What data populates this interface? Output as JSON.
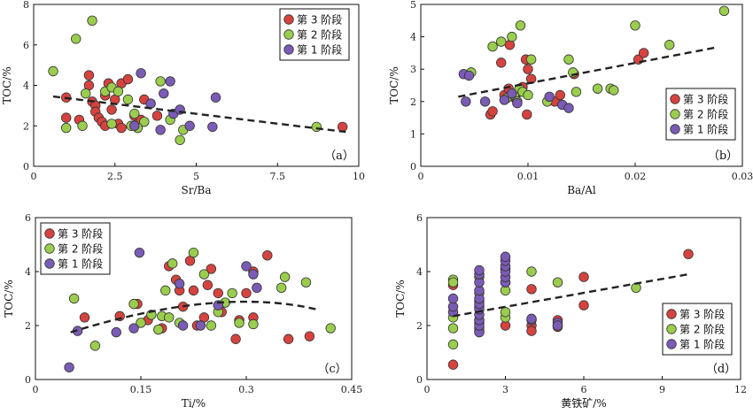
{
  "colors": {
    "stage3": "#d6433f",
    "stage2": "#9acd4d",
    "stage1": "#7a5bb5",
    "trend": "#222222"
  },
  "chart_data": [
    {
      "type": "scatter",
      "panel_label": "（a）",
      "xlabel": "Sr/Ba",
      "ylabel": "TOC/%",
      "xlim": [
        0,
        10
      ],
      "ylim": [
        0,
        8
      ],
      "xticks": [
        0,
        2.5,
        5,
        7.5,
        10
      ],
      "xtick_labels": [
        "0",
        "2.5",
        "5",
        "7.5",
        "10"
      ],
      "yticks": [
        0,
        2,
        4,
        6,
        8
      ],
      "ytick_labels": [
        "0",
        "2",
        "4",
        "6",
        "8"
      ],
      "legend": {
        "position": "top-right",
        "items": [
          "第 3 阶段",
          "第 2 阶段",
          "第 1 阶段"
        ]
      },
      "trend": {
        "type": "linear",
        "from": [
          0.6,
          3.45
        ],
        "to": [
          9.6,
          1.7
        ]
      },
      "series": [
        {
          "name": "第 3 阶段",
          "color": "stage3",
          "points": [
            [
              1.0,
              3.4
            ],
            [
              1.0,
              2.4
            ],
            [
              1.4,
              2.3
            ],
            [
              1.7,
              4.5
            ],
            [
              1.7,
              4.0
            ],
            [
              1.8,
              3.2
            ],
            [
              1.9,
              3.0
            ],
            [
              1.9,
              2.7
            ],
            [
              2.0,
              2.4
            ],
            [
              2.1,
              2.2
            ],
            [
              2.2,
              2.0
            ],
            [
              2.2,
              3.5
            ],
            [
              2.3,
              4.1
            ],
            [
              2.4,
              2.8
            ],
            [
              2.5,
              3.3
            ],
            [
              2.6,
              2.1
            ],
            [
              2.7,
              1.9
            ],
            [
              2.7,
              4.1
            ],
            [
              2.9,
              4.3
            ],
            [
              3.1,
              2.5
            ],
            [
              3.3,
              2.3
            ],
            [
              3.4,
              3.3
            ],
            [
              3.8,
              2.5
            ],
            [
              9.5,
              1.95
            ]
          ]
        },
        {
          "name": "第 2 阶段",
          "color": "stage2",
          "points": [
            [
              0.6,
              4.7
            ],
            [
              1.0,
              1.9
            ],
            [
              1.3,
              6.3
            ],
            [
              1.8,
              7.2
            ],
            [
              1.6,
              3.6
            ],
            [
              1.5,
              2.0
            ],
            [
              2.2,
              3.7
            ],
            [
              2.4,
              3.9
            ],
            [
              2.6,
              3.7
            ],
            [
              2.9,
              3.3
            ],
            [
              3.1,
              2.6
            ],
            [
              3.4,
              2.2
            ],
            [
              3.0,
              2.0
            ],
            [
              3.2,
              1.9
            ],
            [
              3.9,
              4.2
            ],
            [
              4.2,
              2.3
            ],
            [
              4.5,
              1.3
            ],
            [
              4.6,
              1.8
            ],
            [
              8.7,
              1.95
            ],
            [
              2.4,
              2.1
            ]
          ]
        },
        {
          "name": "第 1 阶段",
          "color": "stage1",
          "points": [
            [
              3.3,
              4.6
            ],
            [
              3.6,
              3.1
            ],
            [
              4.0,
              3.6
            ],
            [
              4.2,
              4.2
            ],
            [
              4.3,
              2.6
            ],
            [
              4.5,
              2.8
            ],
            [
              4.8,
              2.0
            ],
            [
              5.5,
              1.95
            ],
            [
              5.6,
              3.4
            ],
            [
              3.9,
              1.8
            ],
            [
              3.1,
              2.0
            ]
          ]
        }
      ]
    },
    {
      "type": "scatter",
      "panel_label": "（b）",
      "xlabel": "Ba/Al",
      "ylabel": "TOC/%",
      "xlim": [
        0,
        0.03
      ],
      "ylim": [
        0,
        5
      ],
      "xticks": [
        0,
        0.01,
        0.02,
        0.03
      ],
      "xtick_labels": [
        "0",
        "0.01",
        "0.02",
        "0.03"
      ],
      "yticks": [
        0,
        1,
        2,
        3,
        4,
        5
      ],
      "ytick_labels": [
        "0",
        "1",
        "2",
        "3",
        "4",
        "5"
      ],
      "legend": {
        "position": "bottom-right",
        "items": [
          "第 3 阶段",
          "第 2 阶段",
          "第 1 阶段"
        ]
      },
      "trend": {
        "type": "linear",
        "from": [
          0.0035,
          2.15
        ],
        "to": [
          0.0277,
          3.68
        ]
      },
      "series": [
        {
          "name": "第 3 阶段",
          "color": "stage3",
          "points": [
            [
              0.0065,
              1.6
            ],
            [
              0.0067,
              1.7
            ],
            [
              0.0075,
              3.2
            ],
            [
              0.0078,
              2.2
            ],
            [
              0.0082,
              2.4
            ],
            [
              0.0083,
              3.75
            ],
            [
              0.0088,
              2.1
            ],
            [
              0.0092,
              2.3
            ],
            [
              0.0095,
              2.45
            ],
            [
              0.0098,
              3.3
            ],
            [
              0.0099,
              1.6
            ],
            [
              0.01,
              3.0
            ],
            [
              0.0103,
              2.7
            ],
            [
              0.0125,
              2.0
            ],
            [
              0.013,
              2.2
            ],
            [
              0.0143,
              2.85
            ],
            [
              0.0203,
              3.3
            ],
            [
              0.0208,
              3.5
            ]
          ]
        },
        {
          "name": "第 2 阶段",
          "color": "stage2",
          "points": [
            [
              0.0047,
              2.9
            ],
            [
              0.0067,
              3.7
            ],
            [
              0.0075,
              3.85
            ],
            [
              0.008,
              2.1
            ],
            [
              0.0085,
              4.0
            ],
            [
              0.0087,
              2.2
            ],
            [
              0.009,
              2.0
            ],
            [
              0.0092,
              2.4
            ],
            [
              0.0095,
              2.3
            ],
            [
              0.01,
              2.2
            ],
            [
              0.0103,
              3.3
            ],
            [
              0.0118,
              2.0
            ],
            [
              0.0138,
              3.3
            ],
            [
              0.0142,
              2.9
            ],
            [
              0.0145,
              2.3
            ],
            [
              0.0165,
              2.4
            ],
            [
              0.0177,
              2.4
            ],
            [
              0.018,
              2.35
            ],
            [
              0.02,
              4.35
            ],
            [
              0.0232,
              3.75
            ],
            [
              0.0283,
              4.8
            ],
            [
              0.0093,
              4.35
            ]
          ]
        },
        {
          "name": "第 1 阶段",
          "color": "stage1",
          "points": [
            [
              0.004,
              2.85
            ],
            [
              0.0045,
              2.8
            ],
            [
              0.0042,
              2.0
            ],
            [
              0.006,
              2.0
            ],
            [
              0.0078,
              2.05
            ],
            [
              0.0085,
              2.25
            ],
            [
              0.009,
              1.95
            ],
            [
              0.012,
              2.15
            ],
            [
              0.0132,
              1.9
            ],
            [
              0.0138,
              1.8
            ]
          ]
        }
      ]
    },
    {
      "type": "scatter",
      "panel_label": "（c）",
      "xlabel": "Ti/%",
      "ylabel": "TOC/%",
      "xlim": [
        0,
        0.45
      ],
      "ylim": [
        0,
        6
      ],
      "xticks": [
        0,
        0.15,
        0.3,
        0.45
      ],
      "xtick_labels": [
        "0",
        "0.15",
        "0.3",
        "0.45"
      ],
      "yticks": [
        0,
        2,
        4,
        6
      ],
      "ytick_labels": [
        "0",
        "2",
        "4",
        "6"
      ],
      "legend": {
        "position": "top-left",
        "items": [
          "第 3 阶段",
          "第 2 阶段",
          "第 1 阶段"
        ]
      },
      "trend": {
        "type": "quadratic",
        "from": [
          0.05,
          1.75
        ],
        "to": [
          0.4,
          2.6
        ]
      },
      "series": [
        {
          "name": "第 3 阶段",
          "color": "stage3",
          "points": [
            [
              0.07,
              2.3
            ],
            [
              0.12,
              2.35
            ],
            [
              0.145,
              2.8
            ],
            [
              0.16,
              2.2
            ],
            [
              0.18,
              1.9
            ],
            [
              0.19,
              4.2
            ],
            [
              0.2,
              3.7
            ],
            [
              0.205,
              3.3
            ],
            [
              0.21,
              2.7
            ],
            [
              0.22,
              4.4
            ],
            [
              0.225,
              3.3
            ],
            [
              0.23,
              2.0
            ],
            [
              0.24,
              2.3
            ],
            [
              0.245,
              3.5
            ],
            [
              0.25,
              4.1
            ],
            [
              0.26,
              3.2
            ],
            [
              0.265,
              2.5
            ],
            [
              0.285,
              1.5
            ],
            [
              0.29,
              2.2
            ],
            [
              0.3,
              3.2
            ],
            [
              0.31,
              4.0
            ],
            [
              0.33,
              4.6
            ],
            [
              0.36,
              1.5
            ],
            [
              0.39,
              1.6
            ],
            [
              0.31,
              2.3
            ]
          ]
        },
        {
          "name": "第 2 阶段",
          "color": "stage2",
          "points": [
            [
              0.055,
              3.0
            ],
            [
              0.085,
              1.25
            ],
            [
              0.14,
              2.8
            ],
            [
              0.15,
              2.1
            ],
            [
              0.165,
              2.4
            ],
            [
              0.175,
              1.85
            ],
            [
              0.18,
              2.35
            ],
            [
              0.185,
              3.3
            ],
            [
              0.19,
              2.3
            ],
            [
              0.195,
              4.3
            ],
            [
              0.205,
              2.1
            ],
            [
              0.225,
              4.7
            ],
            [
              0.24,
              3.9
            ],
            [
              0.25,
              2.0
            ],
            [
              0.26,
              2.5
            ],
            [
              0.27,
              2.85
            ],
            [
              0.28,
              3.2
            ],
            [
              0.29,
              2.1
            ],
            [
              0.31,
              2.05
            ],
            [
              0.35,
              3.4
            ],
            [
              0.355,
              3.8
            ],
            [
              0.385,
              3.6
            ],
            [
              0.42,
              1.9
            ]
          ]
        },
        {
          "name": "第 1 阶段",
          "color": "stage1",
          "points": [
            [
              0.048,
              0.45
            ],
            [
              0.06,
              1.8
            ],
            [
              0.115,
              1.75
            ],
            [
              0.14,
              1.9
            ],
            [
              0.148,
              4.7
            ],
            [
              0.205,
              3.55
            ],
            [
              0.21,
              2.0
            ],
            [
              0.235,
              2.0
            ],
            [
              0.26,
              2.75
            ],
            [
              0.3,
              4.2
            ],
            [
              0.31,
              3.9
            ],
            [
              0.315,
              3.4
            ]
          ]
        }
      ]
    },
    {
      "type": "scatter",
      "panel_label": "（d）",
      "xlabel": "黄铁矿/%",
      "ylabel": "TOC/%",
      "xlim": [
        0,
        12
      ],
      "ylim": [
        0,
        6
      ],
      "xticks": [
        0,
        3,
        6,
        9,
        12
      ],
      "xtick_labels": [
        "0",
        "3",
        "6",
        "9",
        "12"
      ],
      "yticks": [
        0,
        2,
        4,
        6
      ],
      "ytick_labels": [
        "0",
        "2",
        "4",
        "6"
      ],
      "legend": {
        "position": "bottom-right",
        "items": [
          "第 3 阶段",
          "第 2 阶段",
          "第 1 阶段"
        ]
      },
      "trend": {
        "type": "linear",
        "from": [
          1.0,
          2.35
        ],
        "to": [
          10.0,
          3.9
        ]
      },
      "series": [
        {
          "name": "第 3 阶段",
          "color": "stage3",
          "points": [
            [
              1,
              0.55
            ],
            [
              1,
              3.5
            ],
            [
              2,
              1.8
            ],
            [
              2,
              2.1
            ],
            [
              2,
              2.9
            ],
            [
              3,
              2.0
            ],
            [
              3,
              4.1
            ],
            [
              3,
              3.6
            ],
            [
              4,
              2.0
            ],
            [
              4,
              1.8
            ],
            [
              4,
              3.35
            ],
            [
              5,
              1.95
            ],
            [
              5,
              2.2
            ],
            [
              6,
              2.75
            ],
            [
              6,
              3.8
            ],
            [
              10,
              4.65
            ]
          ]
        },
        {
          "name": "第 2 阶段",
          "color": "stage2",
          "points": [
            [
              1,
              1.3
            ],
            [
              1,
              1.9
            ],
            [
              1,
              2.3
            ],
            [
              1,
              3.7
            ],
            [
              1,
              3.6
            ],
            [
              2,
              1.9
            ],
            [
              2,
              2.2
            ],
            [
              2,
              2.7
            ],
            [
              2,
              3.2
            ],
            [
              2,
              3.8
            ],
            [
              3,
              2.3
            ],
            [
              3,
              2.5
            ],
            [
              3,
              3.3
            ],
            [
              4,
              4.0
            ],
            [
              5,
              3.6
            ],
            [
              5,
              2.0
            ],
            [
              8,
              3.4
            ]
          ]
        },
        {
          "name": "第 1 阶段",
          "color": "stage1",
          "points": [
            [
              1,
              2.5
            ],
            [
              1,
              2.7
            ],
            [
              1,
              3.0
            ],
            [
              2,
              1.75
            ],
            [
              2,
              2.0
            ],
            [
              2,
              2.2
            ],
            [
              2,
              2.4
            ],
            [
              2,
              2.6
            ],
            [
              2,
              2.8
            ],
            [
              2,
              3.0
            ],
            [
              2,
              3.3
            ],
            [
              2,
              3.6
            ],
            [
              2,
              3.9
            ],
            [
              2,
              4.05
            ],
            [
              3,
              3.6
            ],
            [
              3,
              3.8
            ],
            [
              3,
              4.0
            ],
            [
              3,
              4.2
            ],
            [
              3,
              4.4
            ],
            [
              3,
              4.55
            ],
            [
              4,
              2.2
            ],
            [
              4,
              2.25
            ],
            [
              5,
              2.1
            ],
            [
              5,
              2.0
            ]
          ]
        }
      ]
    }
  ]
}
